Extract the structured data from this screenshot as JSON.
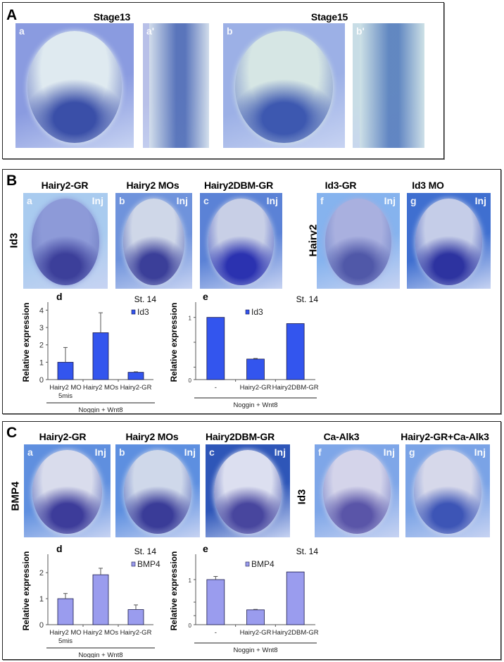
{
  "figure": {
    "A": {
      "letter": "A",
      "stage_titles": [
        "Stage13",
        "Stage15"
      ],
      "images": [
        {
          "label": "a",
          "bg": "#8a9be0",
          "embryo": "#dfeaf0",
          "stain": "#3a4fa8"
        },
        {
          "label": "a'",
          "bg": "#b8c0e8",
          "embryo": "#d8e4ec",
          "stain": "#4262b0"
        },
        {
          "label": "b",
          "bg": "#9cb0e6",
          "embryo": "#d6e6e4",
          "stain": "#3d58b0"
        },
        {
          "label": "b'",
          "bg": "#c8dde6",
          "embryo": "#cfe2e6",
          "stain": "#4872b8"
        }
      ]
    },
    "B": {
      "letter": "B",
      "row_labels": [
        "Id3",
        "Hairy2"
      ],
      "images": [
        {
          "label": "a",
          "title": "Hairy2-GR",
          "inj": "Inj",
          "bg": "#a9cbef",
          "embryo": "#8d9ad8",
          "stain": "#3c3f9a"
        },
        {
          "label": "b",
          "title": "Hairy2 MOs",
          "inj": "Inj",
          "bg": "#6f93dc",
          "embryo": "#cfd7e8",
          "stain": "#3b3f99"
        },
        {
          "label": "c",
          "title": "Hairy2DBM-GR",
          "inj": "Inj",
          "bg": "#5b82d6",
          "embryo": "#c8cfe6",
          "stain": "#2b32b0"
        },
        {
          "label": "f",
          "title": "Id3-GR",
          "inj": "Inj",
          "bg": "#86b3ee",
          "embryo": "#a9b0df",
          "stain": "#5058a8"
        },
        {
          "label": "g",
          "title": "Id3 MO",
          "inj": "Inj",
          "bg": "#3f6fd0",
          "embryo": "#c5cde8",
          "stain": "#2d33a0"
        }
      ]
    },
    "C": {
      "letter": "C",
      "row_labels": [
        "BMP4",
        "Id3"
      ],
      "images": [
        {
          "label": "a",
          "title": "Hairy2-GR",
          "inj": "Inj",
          "bg": "#5f8fdf",
          "embryo": "#d9dcec",
          "stain": "#3d3c9a"
        },
        {
          "label": "b",
          "title": "Hairy2 MOs",
          "inj": "Inj",
          "bg": "#5d8fe0",
          "embryo": "#cfd8ea",
          "stain": "#3a3c98"
        },
        {
          "label": "c",
          "title": "Hairy2DBM-GR",
          "inj": "Inj",
          "bg": "#2e56b8",
          "embryo": "#dcdff0",
          "stain": "#48469e"
        },
        {
          "label": "f",
          "title": "Ca-Alk3",
          "inj": "Inj",
          "bg": "#7ea6e8",
          "embryo": "#d4d4ea",
          "stain": "#5a55a8"
        },
        {
          "label": "g",
          "title": "Hairy2-GR+Ca-Alk3",
          "inj": "Inj",
          "bg": "#7aa3e6",
          "embryo": "#d6d8ea",
          "stain": "#3d55b6"
        }
      ]
    }
  },
  "chart_data": [
    {
      "id": "B-d",
      "panel_label": "d",
      "type": "bar",
      "title": "St. 14",
      "ylabel": "Relative expression",
      "xlabel": "Noggin + Wnt8",
      "categories": [
        "Hairy2 MO\n5mis",
        "Hairy2 MOs",
        "Hairy2-GR"
      ],
      "series": [
        {
          "name": "Id3",
          "values": [
            1.0,
            2.7,
            0.42
          ],
          "errors": [
            0.85,
            1.15,
            0.03
          ],
          "color": "#3355ee"
        }
      ],
      "ylim": [
        0,
        4.3
      ],
      "yticks": [
        0,
        1,
        2,
        3,
        4
      ],
      "ytick_labels": [
        "0",
        "1",
        "2",
        "3",
        "4"
      ],
      "legend": "top-right",
      "grid": false
    },
    {
      "id": "B-e",
      "panel_label": "e",
      "type": "bar",
      "title": "St. 14",
      "ylabel": "Relative expression",
      "xlabel": "Noggin + Wnt8",
      "categories": [
        "-",
        "Hairy2-GR",
        "Hairy2DBM-GR"
      ],
      "series": [
        {
          "name": "Id3",
          "values": [
            1.0,
            0.33,
            0.9
          ],
          "errors": [
            0,
            0.01,
            0
          ],
          "color": "#3355ee"
        }
      ],
      "ylim": [
        0,
        1.2
      ],
      "yticks": [
        0,
        0.2,
        0.6,
        1
      ],
      "ytick_labels": [
        "0",
        "",
        "",
        "1"
      ],
      "legend": "top-center",
      "grid": false
    },
    {
      "id": "C-d",
      "panel_label": "d",
      "type": "bar",
      "title": "St. 14",
      "ylabel": "Relative expression",
      "xlabel": "Noggin + Wnt8",
      "categories": [
        "Hairy2 MO\n5mis",
        "Hairy2 MOs",
        "Hairy2-GR"
      ],
      "series": [
        {
          "name": "BMP4",
          "values": [
            1.0,
            1.92,
            0.58
          ],
          "errors": [
            0.2,
            0.25,
            0.18
          ],
          "color": "#9a9cee"
        }
      ],
      "ylim": [
        0,
        2.6
      ],
      "yticks": [
        0,
        1,
        2
      ],
      "ytick_labels": [
        "0",
        "1",
        "2"
      ],
      "legend": "top-right",
      "grid": false
    },
    {
      "id": "C-e",
      "panel_label": "e",
      "type": "bar",
      "title": "St. 14",
      "ylabel": "Relative expression",
      "xlabel": "Noggin + Wnt8",
      "categories": [
        "-",
        "Hairy2-GR",
        "Hairy2DBM-GR"
      ],
      "series": [
        {
          "name": "BMP4",
          "values": [
            1.0,
            0.33,
            1.17
          ],
          "errors": [
            0.07,
            0.01,
            0
          ],
          "color": "#9a9cee"
        }
      ],
      "ylim": [
        0,
        1.5
      ],
      "yticks": [
        0,
        0.2,
        0.5,
        1
      ],
      "ytick_labels": [
        "0",
        "",
        "",
        "1"
      ],
      "legend": "top-center",
      "grid": false
    }
  ]
}
